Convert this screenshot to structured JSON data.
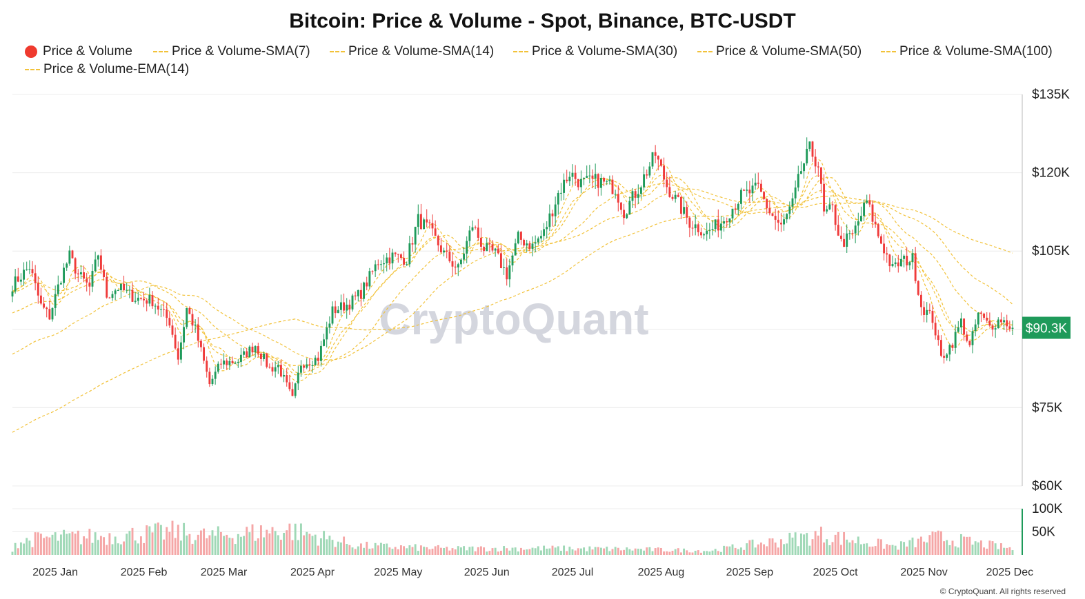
{
  "title": "Bitcoin: Price & Volume - Spot, Binance, BTC-USDT",
  "legend": [
    {
      "label": "Price & Volume",
      "kind": "dot",
      "color": "#ef3a2e"
    },
    {
      "label": "Price & Volume-SMA(7)",
      "kind": "dash",
      "color": "#f2c23a"
    },
    {
      "label": "Price & Volume-SMA(14)",
      "kind": "dash",
      "color": "#f2c23a"
    },
    {
      "label": "Price & Volume-SMA(30)",
      "kind": "dash",
      "color": "#f2c23a"
    },
    {
      "label": "Price & Volume-SMA(50)",
      "kind": "dash",
      "color": "#f2c23a"
    },
    {
      "label": "Price & Volume-SMA(100)",
      "kind": "dash",
      "color": "#f2c23a"
    },
    {
      "label": "Price & Volume-EMA(14)",
      "kind": "dash",
      "color": "#f2c23a"
    }
  ],
  "watermark": "CryptoQuant",
  "copyright": "© CryptoQuant. All rights reserved",
  "colors": {
    "up": "#1e9a5a",
    "down": "#ef3a3a",
    "ma": "#f2c23a",
    "last_price_bg": "#1e9a5a",
    "grid": "#ececec"
  },
  "chart_data": {
    "type": "candlestick",
    "price_axis": {
      "ylim": [
        60000,
        135000
      ],
      "ticks": [
        "$135K",
        "$120K",
        "$105K",
        "$75K",
        "$60K"
      ],
      "tick_values": [
        135000,
        120000,
        105000,
        75000,
        60000
      ]
    },
    "volume_axis": {
      "ylim": [
        0,
        100000
      ],
      "ticks": [
        "100K",
        "50K"
      ],
      "tick_values": [
        100000,
        50000
      ]
    },
    "x_axis": {
      "range": [
        "2024-12-31",
        "2025-12-16"
      ],
      "ticks": [
        "2025 Jan",
        "2025 Feb",
        "2025 Mar",
        "2025 Apr",
        "2025 May",
        "2025 Jun",
        "2025 Jul",
        "2025 Aug",
        "2025 Sep",
        "2025 Oct",
        "2025 Nov",
        "2025 Dec"
      ],
      "tick_dates": [
        "2025-01-15",
        "2025-02-15",
        "2025-03-15",
        "2025-04-15",
        "2025-05-15",
        "2025-06-15",
        "2025-07-15",
        "2025-08-15",
        "2025-09-15",
        "2025-10-15",
        "2025-11-15",
        "2025-12-15"
      ]
    },
    "last_price_label": "$90.3K",
    "last_price": 90300,
    "close_path": [
      [
        "2024-12-31",
        98500
      ],
      [
        "2025-01-06",
        102000
      ],
      [
        "2025-01-10",
        94500
      ],
      [
        "2025-01-13",
        92500
      ],
      [
        "2025-01-17",
        100000
      ],
      [
        "2025-01-20",
        104000
      ],
      [
        "2025-01-23",
        100500
      ],
      [
        "2025-01-27",
        98000
      ],
      [
        "2025-01-30",
        104500
      ],
      [
        "2025-02-02",
        96500
      ],
      [
        "2025-02-06",
        98000
      ],
      [
        "2025-02-12",
        96000
      ],
      [
        "2025-02-18",
        95500
      ],
      [
        "2025-02-24",
        91500
      ],
      [
        "2025-02-27",
        84500
      ],
      [
        "2025-03-02",
        94000
      ],
      [
        "2025-03-05",
        90000
      ],
      [
        "2025-03-10",
        79500
      ],
      [
        "2025-03-14",
        83500
      ],
      [
        "2025-03-20",
        84000
      ],
      [
        "2025-03-26",
        87000
      ],
      [
        "2025-03-31",
        82500
      ],
      [
        "2025-04-03",
        83000
      ],
      [
        "2025-04-08",
        76500
      ],
      [
        "2025-04-11",
        83500
      ],
      [
        "2025-04-17",
        84500
      ],
      [
        "2025-04-22",
        93500
      ],
      [
        "2025-04-28",
        95000
      ],
      [
        "2025-05-02",
        97000
      ],
      [
        "2025-05-08",
        103000
      ],
      [
        "2025-05-13",
        104000
      ],
      [
        "2025-05-18",
        103500
      ],
      [
        "2025-05-22",
        111000
      ],
      [
        "2025-05-26",
        109000
      ],
      [
        "2025-05-31",
        104500
      ],
      [
        "2025-06-05",
        101500
      ],
      [
        "2025-06-10",
        110000
      ],
      [
        "2025-06-14",
        105500
      ],
      [
        "2025-06-18",
        104500
      ],
      [
        "2025-06-22",
        100500
      ],
      [
        "2025-06-26",
        107500
      ],
      [
        "2025-07-01",
        106000
      ],
      [
        "2025-07-05",
        108500
      ],
      [
        "2025-07-10",
        116000
      ],
      [
        "2025-07-14",
        120000
      ],
      [
        "2025-07-18",
        118000
      ],
      [
        "2025-07-24",
        118500
      ],
      [
        "2025-07-30",
        117000
      ],
      [
        "2025-08-02",
        112500
      ],
      [
        "2025-08-07",
        117000
      ],
      [
        "2025-08-13",
        123500
      ],
      [
        "2025-08-17",
        117500
      ],
      [
        "2025-08-21",
        114000
      ],
      [
        "2025-08-25",
        110500
      ],
      [
        "2025-08-31",
        108500
      ],
      [
        "2025-09-05",
        110500
      ],
      [
        "2025-09-12",
        115500
      ],
      [
        "2025-09-18",
        117000
      ],
      [
        "2025-09-22",
        112500
      ],
      [
        "2025-09-26",
        109500
      ],
      [
        "2025-09-30",
        114000
      ],
      [
        "2025-10-03",
        120500
      ],
      [
        "2025-10-06",
        124500
      ],
      [
        "2025-10-09",
        121500
      ],
      [
        "2025-10-11",
        112000
      ],
      [
        "2025-10-14",
        113000
      ],
      [
        "2025-10-17",
        106500
      ],
      [
        "2025-10-21",
        108000
      ],
      [
        "2025-10-26",
        114500
      ],
      [
        "2025-10-30",
        108000
      ],
      [
        "2025-11-04",
        101500
      ],
      [
        "2025-11-07",
        103000
      ],
      [
        "2025-11-11",
        103500
      ],
      [
        "2025-11-14",
        94500
      ],
      [
        "2025-11-18",
        92000
      ],
      [
        "2025-11-21",
        84500
      ],
      [
        "2025-11-25",
        87500
      ],
      [
        "2025-11-28",
        91500
      ],
      [
        "2025-12-01",
        86500
      ],
      [
        "2025-12-04",
        93000
      ],
      [
        "2025-12-08",
        90500
      ],
      [
        "2025-12-12",
        92000
      ],
      [
        "2025-12-16",
        90300
      ]
    ],
    "volume_profile": [
      [
        "2025-01-01",
        28000
      ],
      [
        "2025-01-10",
        40000
      ],
      [
        "2025-02-03",
        45000
      ],
      [
        "2025-02-25",
        55000
      ],
      [
        "2025-03-10",
        45000
      ],
      [
        "2025-04-07",
        60000
      ],
      [
        "2025-05-01",
        22000
      ],
      [
        "2025-06-01",
        15000
      ],
      [
        "2025-07-01",
        16000
      ],
      [
        "2025-08-01",
        14000
      ],
      [
        "2025-09-01",
        10000
      ],
      [
        "2025-10-10",
        48000
      ],
      [
        "2025-11-05",
        20000
      ],
      [
        "2025-11-20",
        42000
      ],
      [
        "2025-12-16",
        15000
      ]
    ],
    "moving_averages": [
      {
        "name": "Price & Volume-SMA(7)",
        "period": 7
      },
      {
        "name": "Price & Volume-SMA(14)",
        "period": 14
      },
      {
        "name": "Price & Volume-SMA(30)",
        "period": 30
      },
      {
        "name": "Price & Volume-SMA(50)",
        "period": 50
      },
      {
        "name": "Price & Volume-SMA(100)",
        "period": 100
      },
      {
        "name": "Price & Volume-EMA(14)",
        "period": 14,
        "ema": true
      }
    ]
  }
}
